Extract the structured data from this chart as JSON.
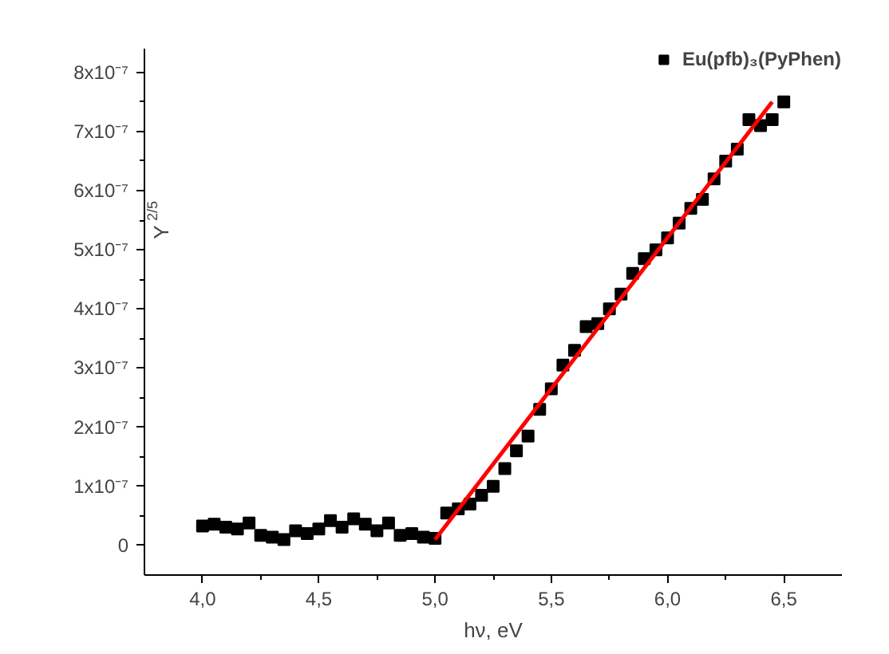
{
  "chart_data": {
    "type": "scatter",
    "xlabel": "hν, eV",
    "ylabel": "Y$^{2/5}$",
    "legend": "top right",
    "grid": false,
    "xlim": [
      3.75,
      6.75
    ],
    "ylim": [
      -5e-08,
      8.4e-07
    ],
    "xticks": [
      {
        "value": 4.0,
        "label": "4,0"
      },
      {
        "value": 4.5,
        "label": "4,5"
      },
      {
        "value": 5.0,
        "label": "5,0"
      },
      {
        "value": 5.5,
        "label": "5,5"
      },
      {
        "value": 6.0,
        "label": "6,0"
      },
      {
        "value": 6.5,
        "label": "6,5"
      }
    ],
    "yticks": [
      0,
      {
        "value": 1e-07,
        "label": "1x10⁻⁷"
      },
      {
        "value": 2e-07,
        "label": "2x10⁻⁷"
      },
      {
        "value": 3e-07,
        "label": "3x10⁻⁷"
      },
      {
        "value": 4e-07,
        "label": "4x10⁻⁷"
      },
      {
        "value": 5e-07,
        "label": "5x10⁻⁷"
      },
      {
        "value": 6e-07,
        "label": "6x10⁻⁷"
      },
      {
        "value": 7e-07,
        "label": "7x10⁻⁷"
      },
      {
        "value": 8e-07,
        "label": "8x10⁻⁷"
      }
    ],
    "series": [
      {
        "name": "Eu(pfb)₃(PyPhen)",
        "color": "#000000",
        "marker": "square",
        "x": [
          4.0,
          4.05,
          4.1,
          4.15,
          4.2,
          4.25,
          4.3,
          4.35,
          4.4,
          4.45,
          4.5,
          4.55,
          4.6,
          4.65,
          4.7,
          4.75,
          4.8,
          4.85,
          4.9,
          4.95,
          5.0,
          5.05,
          5.1,
          5.15,
          5.2,
          5.25,
          5.3,
          5.35,
          5.4,
          5.45,
          5.5,
          5.55,
          5.6,
          5.65,
          5.7,
          5.75,
          5.8,
          5.85,
          5.9,
          5.95,
          6.0,
          6.05,
          6.1,
          6.15,
          6.2,
          6.25,
          6.3,
          6.35,
          6.4,
          6.45,
          6.5
        ],
        "values": [
          3.3e-08,
          3.6e-08,
          3.1e-08,
          2.8e-08,
          3.8e-08,
          1.7e-08,
          1.4e-08,
          1e-08,
          2.5e-08,
          2e-08,
          2.8e-08,
          4.2e-08,
          3.1e-08,
          4.5e-08,
          3.6e-08,
          2.5e-08,
          3.8e-08,
          1.7e-08,
          2e-08,
          1.4e-08,
          1.2e-08,
          5.5e-08,
          6.2e-08,
          7e-08,
          8.5e-08,
          1e-07,
          1.3e-07,
          1.6e-07,
          1.85e-07,
          2.3e-07,
          2.65e-07,
          3.05e-07,
          3.3e-07,
          3.7e-07,
          3.75e-07,
          4e-07,
          4.25e-07,
          4.6e-07,
          4.85e-07,
          5e-07,
          5.2e-07,
          5.45e-07,
          5.7e-07,
          5.85e-07,
          6.2e-07,
          6.5e-07,
          6.7e-07,
          7.2e-07,
          7.1e-07,
          7.2e-07,
          7.5e-07
        ]
      },
      {
        "type": "line",
        "color": "#ff0000",
        "x": [
          5.0,
          6.45
        ],
        "values": [
          1e-08,
          7.5e-07
        ]
      }
    ]
  }
}
